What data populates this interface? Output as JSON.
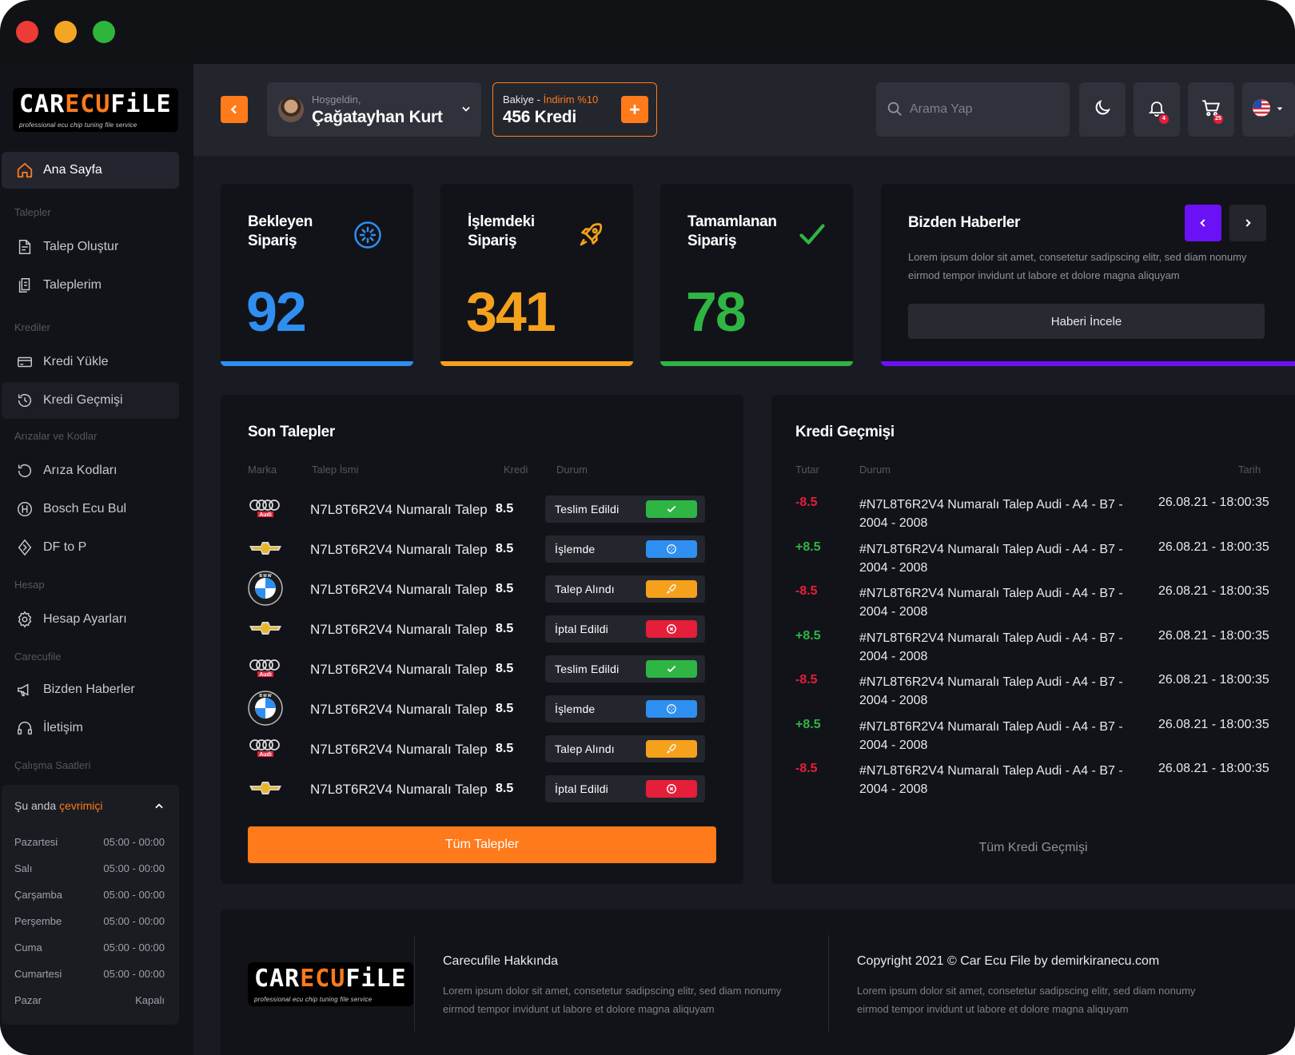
{
  "brand": {
    "name_part1": "CAR",
    "name_part2": "ECU",
    "name_part3": "FiLE",
    "tagline": "professional ecu chip tuning file service",
    "accent": "#ff7a1a"
  },
  "sidebar": {
    "home": "Ana Sayfa",
    "sections": {
      "talepler": "Talepler",
      "krediler": "Krediler",
      "arizalar": "Arızalar ve Kodlar",
      "hesap": "Hesap",
      "carecufile": "Carecufile",
      "calisma": "Çalışma Saatleri"
    },
    "items": {
      "talep_olustur": "Talep Oluştur",
      "taleplerim": "Taleplerim",
      "kredi_yukle": "Kredi Yükle",
      "kredi_gecmisi": "Kredi Geçmişi",
      "ariza_kodlari": "Arıza Kodları",
      "bosch_ecu_bul": "Bosch Ecu Bul",
      "df_to_p": "DF to P",
      "hesap_ayarlari": "Hesap Ayarları",
      "bizden_haberler": "Bizden Haberler",
      "iletisim": "İletişim"
    },
    "hours": {
      "status_prefix": "Şu anda",
      "status_online": "çevrimiçi",
      "days": [
        {
          "day": "Pazartesi",
          "time": "05:00 - 00:00"
        },
        {
          "day": "Salı",
          "time": "05:00 - 00:00"
        },
        {
          "day": "Çarşamba",
          "time": "05:00 - 00:00"
        },
        {
          "day": "Perşembe",
          "time": "05:00 - 00:00"
        },
        {
          "day": "Cuma",
          "time": "05:00 - 00:00"
        },
        {
          "day": "Cumartesi",
          "time": "05:00 - 00:00"
        },
        {
          "day": "Pazar",
          "time": "Kapalı"
        }
      ]
    }
  },
  "header": {
    "greeting": "Hoşgeldin,",
    "user_name": "Çağatayhan Kurt",
    "balance_label": "Bakiye - ",
    "balance_discount": "İndirim %10",
    "balance_value": "456 Kredi",
    "search_placeholder": "Arama Yap",
    "notification_count": "4",
    "cart_count": "25"
  },
  "stats": [
    {
      "title_line1": "Bekleyen",
      "title_line2": "Sipariş",
      "value": "92",
      "color": "#2f8ff0",
      "icon": "loading-icon"
    },
    {
      "title_line1": "İşlemdeki",
      "title_line2": "Sipariş",
      "value": "341",
      "color": "#f5a11c",
      "icon": "rocket-icon"
    },
    {
      "title_line1": "Tamamlanan",
      "title_line2": "Sipariş",
      "value": "78",
      "color": "#2fb544",
      "icon": "check-icon"
    }
  ],
  "news": {
    "title": "Bizden Haberler",
    "text": "Lorem ipsum dolor sit amet, consetetur sadipscing elitr, sed diam nonumy eirmod tempor invidunt ut labore et dolore magna aliquyam",
    "button": "Haberi İncele",
    "color": "#6a11f5"
  },
  "requests": {
    "title": "Son Talepler",
    "headers": {
      "brand": "Marka",
      "name": "Talep İsmi",
      "credit": "Kredi",
      "status": "Durum"
    },
    "rows": [
      {
        "brand": "audi",
        "name": "N7L8T6R2V4 Numaralı Talep",
        "credit": "8.5",
        "status": "Teslim Edildi",
        "kind": "done"
      },
      {
        "brand": "chevrolet",
        "name": "N7L8T6R2V4 Numaralı Talep",
        "credit": "8.5",
        "status": "İşlemde",
        "kind": "progress"
      },
      {
        "brand": "bmw",
        "name": "N7L8T6R2V4 Numaralı Talep",
        "credit": "8.5",
        "status": "Talep Alındı",
        "kind": "received"
      },
      {
        "brand": "chevrolet",
        "name": "N7L8T6R2V4 Numaralı Talep",
        "credit": "8.5",
        "status": "İptal Edildi",
        "kind": "cancelled"
      },
      {
        "brand": "audi",
        "name": "N7L8T6R2V4 Numaralı Talep",
        "credit": "8.5",
        "status": "Teslim Edildi",
        "kind": "done"
      },
      {
        "brand": "bmw",
        "name": "N7L8T6R2V4 Numaralı Talep",
        "credit": "8.5",
        "status": "İşlemde",
        "kind": "progress"
      },
      {
        "brand": "audi",
        "name": "N7L8T6R2V4 Numaralı Talep",
        "credit": "8.5",
        "status": "Talep Alındı",
        "kind": "received"
      },
      {
        "brand": "chevrolet",
        "name": "N7L8T6R2V4 Numaralı Talep",
        "credit": "8.5",
        "status": "İptal Edildi",
        "kind": "cancelled"
      }
    ],
    "button": "Tüm Talepler",
    "status_colors": {
      "done": "#2fb544",
      "progress": "#2f8ff0",
      "received": "#f5a11c",
      "cancelled": "#e51e39"
    }
  },
  "credit_history": {
    "title": "Kredi Geçmişi",
    "headers": {
      "amount": "Tutar",
      "status": "Durum",
      "date": "Tarih"
    },
    "rows": [
      {
        "amount": "-8.5",
        "line1": "#N7L8T6R2V4 Numaralı Talep Audi - A4 - B7 -",
        "line2": "2004 - 2008",
        "date": "26.08.21 - 18:00:35"
      },
      {
        "amount": "+8.5",
        "line1": "#N7L8T6R2V4 Numaralı Talep Audi - A4 - B7 -",
        "line2": "2004 - 2008",
        "date": "26.08.21 - 18:00:35"
      },
      {
        "amount": "-8.5",
        "line1": "#N7L8T6R2V4 Numaralı Talep Audi - A4 - B7 -",
        "line2": "2004 - 2008",
        "date": "26.08.21 - 18:00:35"
      },
      {
        "amount": "+8.5",
        "line1": "#N7L8T6R2V4 Numaralı Talep Audi - A4 - B7 -",
        "line2": "2004 - 2008",
        "date": "26.08.21 - 18:00:35"
      },
      {
        "amount": "-8.5",
        "line1": "#N7L8T6R2V4 Numaralı Talep Audi - A4 - B7 -",
        "line2": "2004 - 2008",
        "date": "26.08.21 - 18:00:35"
      },
      {
        "amount": "+8.5",
        "line1": "#N7L8T6R2V4 Numaralı Talep Audi - A4 - B7 -",
        "line2": "2004 - 2008",
        "date": "26.08.21 - 18:00:35"
      },
      {
        "amount": "-8.5",
        "line1": "#N7L8T6R2V4 Numaralı Talep Audi - A4 - B7 -",
        "line2": "2004 - 2008",
        "date": "26.08.21 - 18:00:35"
      }
    ],
    "link": "Tüm Kredi Geçmişi",
    "negative_color": "#e51e39",
    "positive_color": "#2fb544"
  },
  "footer": {
    "about_title": "Carecufile Hakkında",
    "about_text": "Lorem ipsum dolor sit amet, consetetur sadipscing elitr, sed diam nonumy eirmod tempor invidunt ut labore et dolore magna aliquyam",
    "copyright": "Copyright 2021 © Car Ecu File by demirkiranecu.com",
    "copyright_text": "Lorem ipsum dolor sit amet, consetetur sadipscing elitr, sed diam nonumy eirmod tempor invidunt ut labore et dolore magna aliquyam"
  }
}
